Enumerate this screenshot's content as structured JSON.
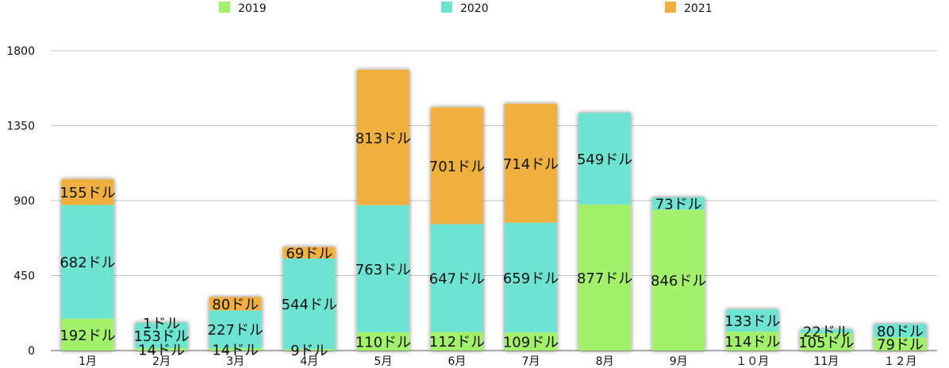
{
  "chart_data": {
    "type": "bar",
    "stacked": true,
    "categories": [
      "1月",
      "2月",
      "3月",
      "4月",
      "5月",
      "6月",
      "7月",
      "8月",
      "9月",
      "１０月",
      "11月",
      "１２月"
    ],
    "series": [
      {
        "name": "2019",
        "color": "#a3f06a",
        "values": [
          192,
          14,
          14,
          9,
          110,
          112,
          109,
          877,
          846,
          114,
          105,
          79
        ],
        "labels": [
          "192ドル",
          "14ドル",
          "14ドル",
          "9ドル",
          "110ドル",
          "112ドル",
          "109ドル",
          "877ドル",
          "846ドル",
          "114ドル",
          "105ドル",
          "79ドル"
        ]
      },
      {
        "name": "2020",
        "color": "#6de3d2",
        "values": [
          682,
          153,
          227,
          544,
          763,
          647,
          659,
          549,
          73,
          133,
          22,
          80
        ],
        "labels": [
          "682ドル",
          "153ドル",
          "227ドル",
          "544ドル",
          "763ドル",
          "647ドル",
          "659ドル",
          "549ドル",
          "73ドル",
          "133ドル",
          "22ドル",
          "80ドル"
        ]
      },
      {
        "name": "2021",
        "color": "#f0b03e",
        "values": [
          155,
          1,
          80,
          69,
          813,
          701,
          714,
          null,
          null,
          null,
          null,
          null
        ],
        "labels": [
          "155ドル",
          "1ドル",
          "80ドル",
          "69ドル",
          "813ドル",
          "701ドル",
          "714ドル",
          "",
          "",
          "",
          "",
          ""
        ]
      }
    ],
    "yticks": [
      "0",
      "450",
      "900",
      "1350",
      "1800"
    ],
    "ylim": [
      0,
      1800
    ],
    "grid": true,
    "legend_position": "top"
  }
}
